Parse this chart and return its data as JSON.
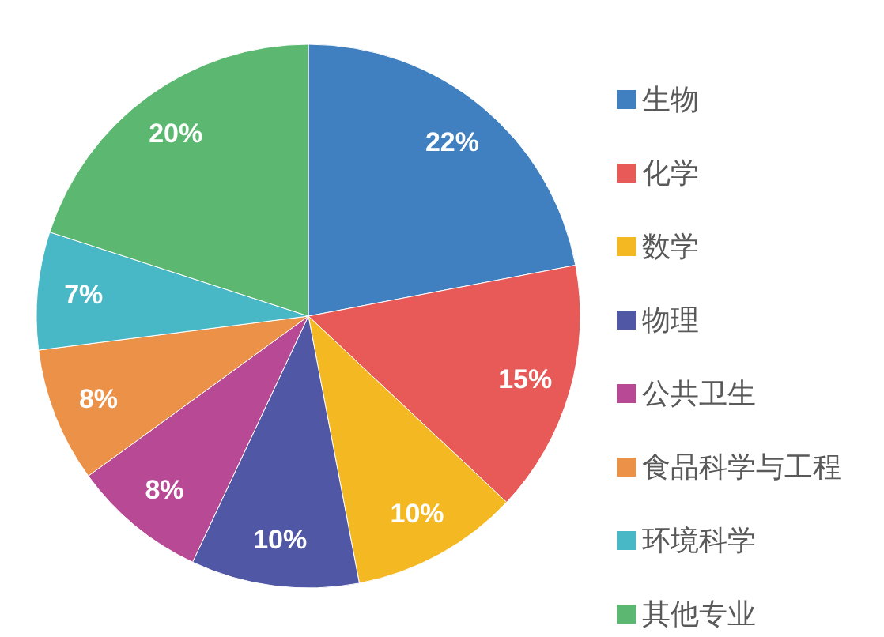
{
  "chart_data": {
    "type": "pie",
    "categories": [
      "生物",
      "化学",
      "数学",
      "物理",
      "公共卫生",
      "食品科学与工程",
      "环境科学",
      "其他专业"
    ],
    "values": [
      22,
      15,
      10,
      10,
      8,
      8,
      7,
      20
    ],
    "colors": [
      "#4080c0",
      "#e85a58",
      "#f3b822",
      "#5057a5",
      "#b84994",
      "#ec9248",
      "#48b8c6",
      "#5cb870"
    ],
    "value_labels": [
      "22%",
      "15%",
      "10%",
      "10%",
      "8%",
      "8%",
      "7%",
      "20%"
    ],
    "legend": "right"
  }
}
